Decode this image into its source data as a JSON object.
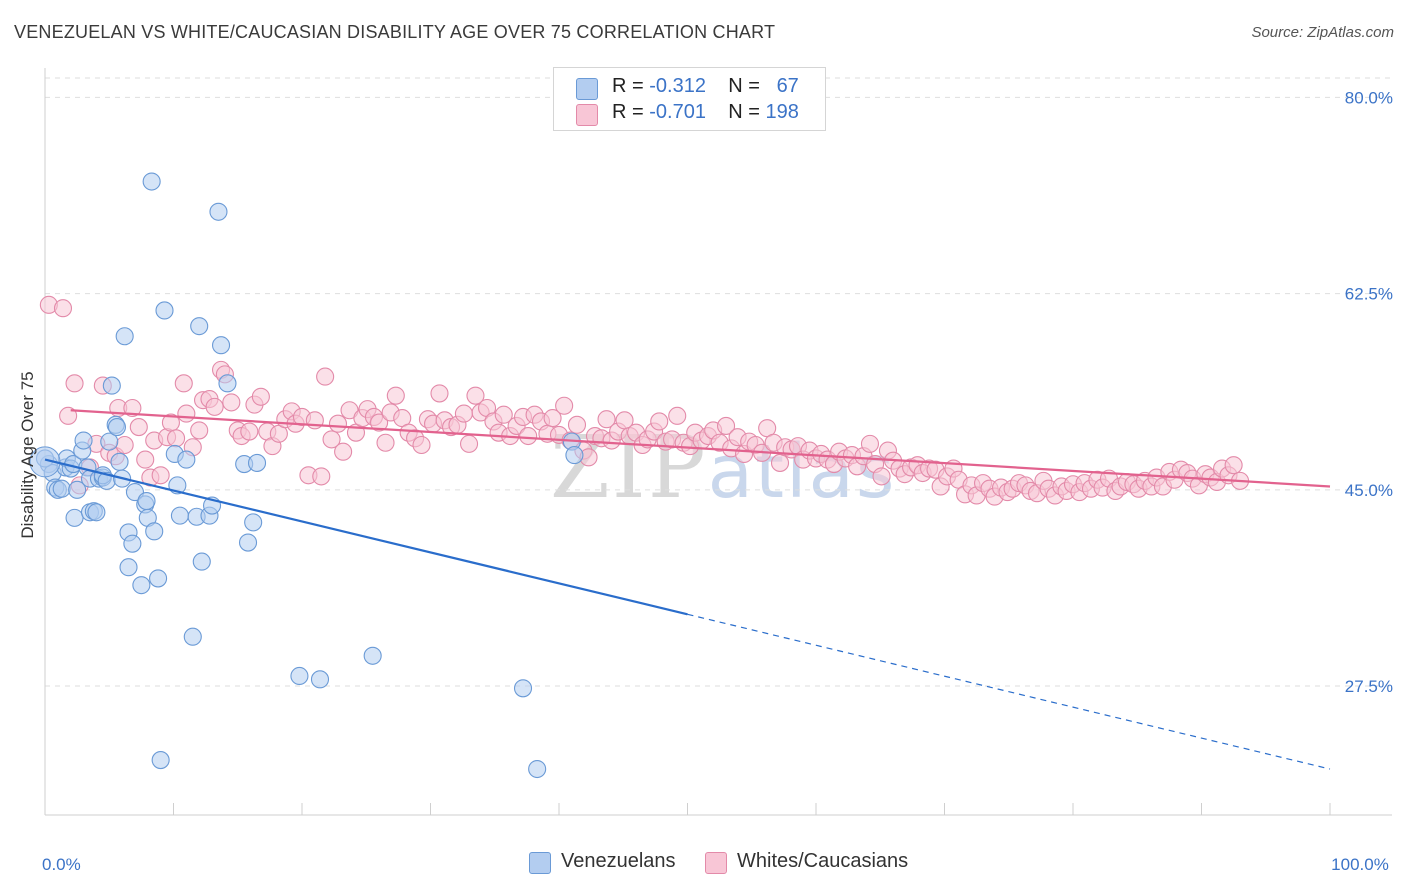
{
  "title": "VENEZUELAN VS WHITE/CAUCASIAN DISABILITY AGE OVER 75 CORRELATION CHART",
  "source": "Source: ZipAtlas.com",
  "watermark": {
    "zip": "ZIP",
    "atlas": "atlas"
  },
  "legend": {
    "r_label": "R =",
    "n_label": "N =",
    "rows": [
      {
        "r": "-0.312",
        "n": "67",
        "color": "#b3cdf0",
        "border": "#6a9ad6"
      },
      {
        "r": "-0.701",
        "n": "198",
        "color": "#f8c6d6",
        "border": "#e38aa9"
      }
    ]
  },
  "bottom_legend": [
    {
      "label": "Venezuelans",
      "color": "#b3cdf0",
      "border": "#6a9ad6"
    },
    {
      "label": "Whites/Caucasians",
      "color": "#f8c6d6",
      "border": "#e38aa9"
    }
  ],
  "chart_data": {
    "type": "scatter",
    "title": "VENEZUELAN VS WHITE/CAUCASIAN DISABILITY AGE OVER 75 CORRELATION CHART",
    "xlabel": "",
    "ylabel": "Disability Age Over 75",
    "xlim": [
      0,
      100
    ],
    "ylim": [
      16,
      82
    ],
    "x_ticks": [
      0,
      100
    ],
    "x_tick_labels": [
      "0.0%",
      "100.0%"
    ],
    "y_ticks": [
      27.5,
      45.0,
      62.5,
      80.0
    ],
    "y_tick_labels": [
      "27.5%",
      "45.0%",
      "62.5%",
      "80.0%"
    ],
    "grid": true,
    "series": [
      {
        "name": "Venezuelans",
        "color": "#6a9ad6",
        "fill": "#b3cdf0",
        "trend": {
          "x0": 0,
          "y0": 47.7,
          "x1": 50,
          "y1": 33.9,
          "dashed_to_x": 100,
          "dashed_to_y": 20.1,
          "color": "#2a6dcb"
        },
        "points": [
          [
            0.3,
            47.3
          ],
          [
            0.6,
            46.5
          ],
          [
            0.8,
            45.2
          ],
          [
            1.0,
            45.0
          ],
          [
            1.3,
            45.1
          ],
          [
            1.6,
            47.0
          ],
          [
            1.7,
            47.8
          ],
          [
            2.0,
            46.9
          ],
          [
            2.2,
            47.3
          ],
          [
            2.3,
            42.5
          ],
          [
            2.5,
            45.0
          ],
          [
            2.9,
            48.5
          ],
          [
            3.0,
            49.4
          ],
          [
            3.3,
            47.0
          ],
          [
            3.5,
            46.0
          ],
          [
            3.5,
            43.0
          ],
          [
            3.8,
            43.1
          ],
          [
            4.0,
            43.0
          ],
          [
            4.2,
            46.0
          ],
          [
            4.5,
            46.1
          ],
          [
            4.5,
            46.3
          ],
          [
            4.8,
            45.8
          ],
          [
            5.0,
            49.3
          ],
          [
            5.2,
            54.3
          ],
          [
            5.5,
            50.8
          ],
          [
            5.6,
            50.6
          ],
          [
            5.8,
            47.5
          ],
          [
            6.0,
            46.0
          ],
          [
            6.2,
            58.7
          ],
          [
            6.5,
            41.2
          ],
          [
            6.5,
            38.1
          ],
          [
            6.8,
            40.2
          ],
          [
            7.0,
            44.8
          ],
          [
            7.5,
            36.5
          ],
          [
            7.8,
            43.7
          ],
          [
            7.9,
            44.0
          ],
          [
            8.0,
            42.5
          ],
          [
            8.3,
            72.5
          ],
          [
            8.5,
            41.3
          ],
          [
            8.8,
            37.1
          ],
          [
            9.0,
            20.9
          ],
          [
            9.3,
            61.0
          ],
          [
            10.1,
            48.2
          ],
          [
            10.3,
            45.4
          ],
          [
            10.5,
            42.7
          ],
          [
            11.0,
            47.7
          ],
          [
            11.5,
            31.9
          ],
          [
            11.8,
            42.6
          ],
          [
            12.0,
            59.6
          ],
          [
            12.2,
            38.6
          ],
          [
            12.8,
            42.7
          ],
          [
            13.0,
            43.6
          ],
          [
            13.5,
            69.8
          ],
          [
            13.7,
            57.9
          ],
          [
            14.2,
            54.5
          ],
          [
            15.5,
            47.3
          ],
          [
            15.8,
            40.3
          ],
          [
            16.2,
            42.1
          ],
          [
            16.5,
            47.4
          ],
          [
            19.8,
            28.4
          ],
          [
            21.4,
            28.1
          ],
          [
            25.5,
            30.2
          ],
          [
            37.2,
            27.3
          ],
          [
            38.3,
            20.1
          ],
          [
            41.0,
            49.3
          ],
          [
            41.2,
            48.1
          ],
          [
            0.0,
            47.8
          ]
        ]
      },
      {
        "name": "Whites/Caucasians",
        "color": "#e38aa9",
        "fill": "#f8c6d6",
        "trend": {
          "x0": 2,
          "y0": 52.1,
          "x1": 100,
          "y1": 45.3,
          "color": "#e2628e"
        },
        "points": [
          [
            0.3,
            61.5
          ],
          [
            1.4,
            61.2
          ],
          [
            1.8,
            51.6
          ],
          [
            2.3,
            54.5
          ],
          [
            2.7,
            45.4
          ],
          [
            3.5,
            47.0
          ],
          [
            4.0,
            49.1
          ],
          [
            4.5,
            54.3
          ],
          [
            5.0,
            48.3
          ],
          [
            5.5,
            48.0
          ],
          [
            5.7,
            52.3
          ],
          [
            6.2,
            49.0
          ],
          [
            6.8,
            52.3
          ],
          [
            7.3,
            50.6
          ],
          [
            7.8,
            47.7
          ],
          [
            8.2,
            46.1
          ],
          [
            8.5,
            49.4
          ],
          [
            9.0,
            46.3
          ],
          [
            9.5,
            49.7
          ],
          [
            9.8,
            51.0
          ],
          [
            10.2,
            49.6
          ],
          [
            10.8,
            54.5
          ],
          [
            11.0,
            51.8
          ],
          [
            11.5,
            48.8
          ],
          [
            12.0,
            50.3
          ],
          [
            12.3,
            53.0
          ],
          [
            12.8,
            53.1
          ],
          [
            13.2,
            52.4
          ],
          [
            13.7,
            55.7
          ],
          [
            14.0,
            55.3
          ],
          [
            14.5,
            52.8
          ],
          [
            15.0,
            50.3
          ],
          [
            15.3,
            49.8
          ],
          [
            15.9,
            50.2
          ],
          [
            16.3,
            52.6
          ],
          [
            16.8,
            53.3
          ],
          [
            17.3,
            50.2
          ],
          [
            17.7,
            48.9
          ],
          [
            18.2,
            50.0
          ],
          [
            18.7,
            51.3
          ],
          [
            19.2,
            52.0
          ],
          [
            19.5,
            50.9
          ],
          [
            20.0,
            51.5
          ],
          [
            20.5,
            46.3
          ],
          [
            21.0,
            51.2
          ],
          [
            21.5,
            46.2
          ],
          [
            21.8,
            55.1
          ],
          [
            22.3,
            49.5
          ],
          [
            22.8,
            50.9
          ],
          [
            23.2,
            48.4
          ],
          [
            23.7,
            52.1
          ],
          [
            24.2,
            50.1
          ],
          [
            24.7,
            51.4
          ],
          [
            25.1,
            52.2
          ],
          [
            25.6,
            51.5
          ],
          [
            26.0,
            51.0
          ],
          [
            26.5,
            49.2
          ],
          [
            26.9,
            51.9
          ],
          [
            27.3,
            53.4
          ],
          [
            27.8,
            51.4
          ],
          [
            28.3,
            50.1
          ],
          [
            28.8,
            49.6
          ],
          [
            29.3,
            49.0
          ],
          [
            29.8,
            51.3
          ],
          [
            30.2,
            50.9
          ],
          [
            30.7,
            53.6
          ],
          [
            31.1,
            51.2
          ],
          [
            31.6,
            50.6
          ],
          [
            32.1,
            50.8
          ],
          [
            32.6,
            51.8
          ],
          [
            33.0,
            49.1
          ],
          [
            33.5,
            53.4
          ],
          [
            33.9,
            51.9
          ],
          [
            34.4,
            52.3
          ],
          [
            34.9,
            51.1
          ],
          [
            35.3,
            50.1
          ],
          [
            35.7,
            51.7
          ],
          [
            36.2,
            49.8
          ],
          [
            36.7,
            50.7
          ],
          [
            37.2,
            51.5
          ],
          [
            37.6,
            49.8
          ],
          [
            38.1,
            51.7
          ],
          [
            38.6,
            51.1
          ],
          [
            39.1,
            50.0
          ],
          [
            39.5,
            51.4
          ],
          [
            40.0,
            49.9
          ],
          [
            40.4,
            52.5
          ],
          [
            40.9,
            49.4
          ],
          [
            41.4,
            50.8
          ],
          [
            41.9,
            48.5
          ],
          [
            42.3,
            47.9
          ],
          [
            42.8,
            49.8
          ],
          [
            43.3,
            49.6
          ],
          [
            43.7,
            51.3
          ],
          [
            44.1,
            49.4
          ],
          [
            44.6,
            50.2
          ],
          [
            45.1,
            51.2
          ],
          [
            45.5,
            49.8
          ],
          [
            46.0,
            50.1
          ],
          [
            46.5,
            49.0
          ],
          [
            46.9,
            49.5
          ],
          [
            47.4,
            50.2
          ],
          [
            47.8,
            51.1
          ],
          [
            48.3,
            49.3
          ],
          [
            48.8,
            49.5
          ],
          [
            49.2,
            51.6
          ],
          [
            49.7,
            49.2
          ],
          [
            50.2,
            48.9
          ],
          [
            50.6,
            50.1
          ],
          [
            51.1,
            49.4
          ],
          [
            51.6,
            49.8
          ],
          [
            52.0,
            50.3
          ],
          [
            52.5,
            49.2
          ],
          [
            53.0,
            50.7
          ],
          [
            53.4,
            48.7
          ],
          [
            53.9,
            49.7
          ],
          [
            54.4,
            48.2
          ],
          [
            54.8,
            49.3
          ],
          [
            55.3,
            49.0
          ],
          [
            55.8,
            48.3
          ],
          [
            56.2,
            50.5
          ],
          [
            56.7,
            49.2
          ],
          [
            57.2,
            47.4
          ],
          [
            57.6,
            48.8
          ],
          [
            58.1,
            48.6
          ],
          [
            58.6,
            48.9
          ],
          [
            59.0,
            47.7
          ],
          [
            59.5,
            48.5
          ],
          [
            60.0,
            47.8
          ],
          [
            60.4,
            48.2
          ],
          [
            60.9,
            47.7
          ],
          [
            61.4,
            47.3
          ],
          [
            61.8,
            48.4
          ],
          [
            62.3,
            47.8
          ],
          [
            62.8,
            48.1
          ],
          [
            63.2,
            47.1
          ],
          [
            63.7,
            48.0
          ],
          [
            64.2,
            49.1
          ],
          [
            64.6,
            47.3
          ],
          [
            65.1,
            46.2
          ],
          [
            65.6,
            48.5
          ],
          [
            66.0,
            47.6
          ],
          [
            66.5,
            46.9
          ],
          [
            66.9,
            46.4
          ],
          [
            67.4,
            47.0
          ],
          [
            67.9,
            47.2
          ],
          [
            68.3,
            46.5
          ],
          [
            68.8,
            46.9
          ],
          [
            69.3,
            46.8
          ],
          [
            69.7,
            45.3
          ],
          [
            70.2,
            46.2
          ],
          [
            70.7,
            46.9
          ],
          [
            71.1,
            45.9
          ],
          [
            71.6,
            44.6
          ],
          [
            72.1,
            45.4
          ],
          [
            72.5,
            44.5
          ],
          [
            73.0,
            45.6
          ],
          [
            73.5,
            45.1
          ],
          [
            73.9,
            44.4
          ],
          [
            74.4,
            45.2
          ],
          [
            74.9,
            44.8
          ],
          [
            75.3,
            45.1
          ],
          [
            75.8,
            45.6
          ],
          [
            76.3,
            45.4
          ],
          [
            76.7,
            44.9
          ],
          [
            77.2,
            44.7
          ],
          [
            77.7,
            45.8
          ],
          [
            78.1,
            45.1
          ],
          [
            78.6,
            44.5
          ],
          [
            79.1,
            45.3
          ],
          [
            79.5,
            44.9
          ],
          [
            80.0,
            45.5
          ],
          [
            80.5,
            44.8
          ],
          [
            80.9,
            45.6
          ],
          [
            81.4,
            45.1
          ],
          [
            81.9,
            45.9
          ],
          [
            82.3,
            45.2
          ],
          [
            82.8,
            46.0
          ],
          [
            83.3,
            44.9
          ],
          [
            83.7,
            45.3
          ],
          [
            84.2,
            45.7
          ],
          [
            84.7,
            45.5
          ],
          [
            85.1,
            45.1
          ],
          [
            85.6,
            45.8
          ],
          [
            86.1,
            45.3
          ],
          [
            86.5,
            46.1
          ],
          [
            87.0,
            45.3
          ],
          [
            87.5,
            46.6
          ],
          [
            87.9,
            45.9
          ],
          [
            88.4,
            46.8
          ],
          [
            88.9,
            46.5
          ],
          [
            89.3,
            46.0
          ],
          [
            89.8,
            45.4
          ],
          [
            90.3,
            46.4
          ],
          [
            90.7,
            46.1
          ],
          [
            91.2,
            45.7
          ],
          [
            91.6,
            46.9
          ],
          [
            92.1,
            46.3
          ],
          [
            92.5,
            47.2
          ],
          [
            93.0,
            45.8
          ]
        ]
      }
    ]
  }
}
